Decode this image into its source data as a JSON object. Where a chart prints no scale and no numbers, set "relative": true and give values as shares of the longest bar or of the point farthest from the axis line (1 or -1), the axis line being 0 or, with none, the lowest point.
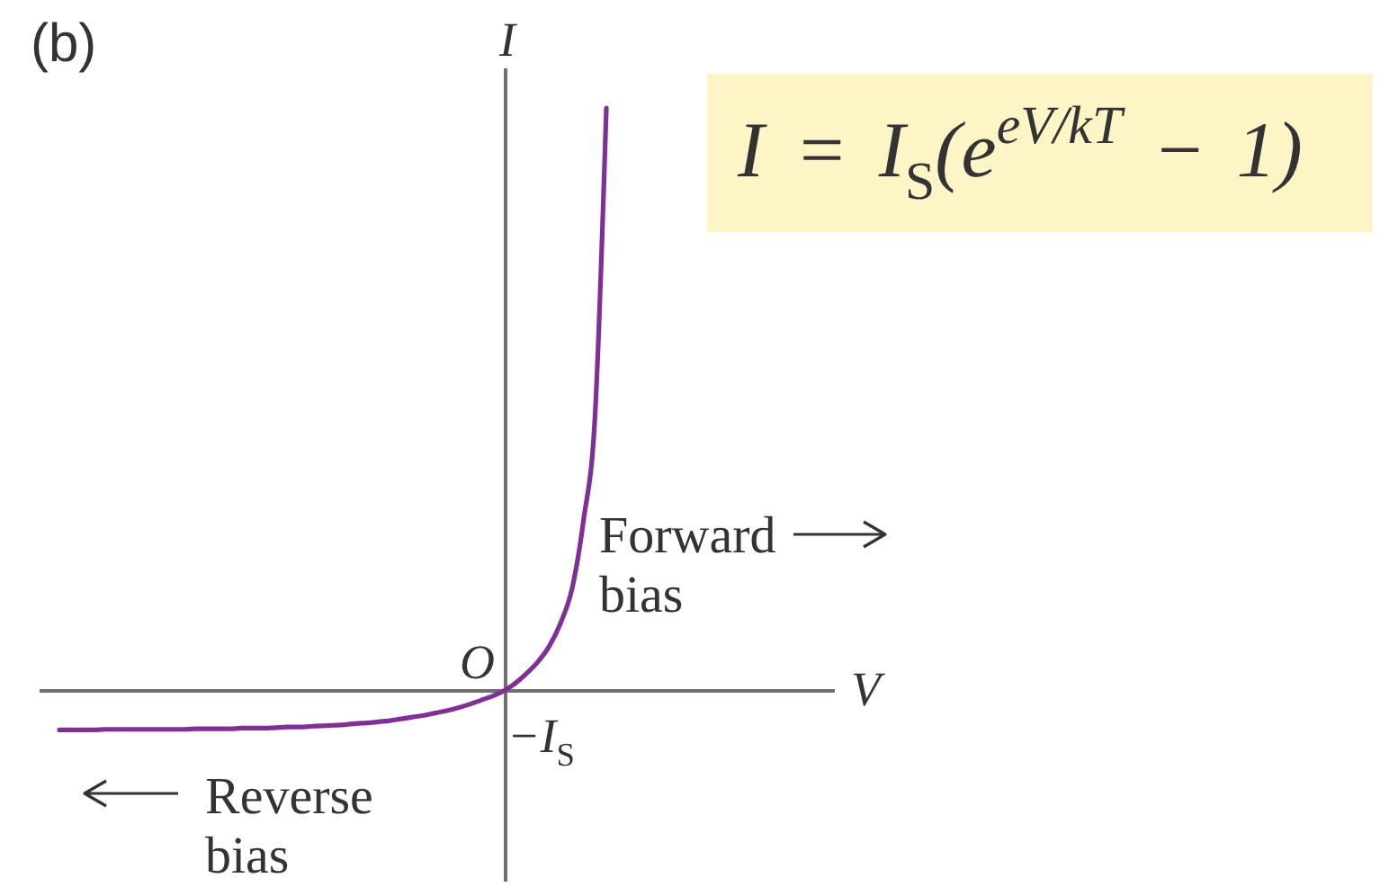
{
  "chart_data": {
    "type": "line",
    "title": "(b)",
    "xlabel": "V",
    "ylabel": "I",
    "relative": true,
    "categories": [
      null,
      null,
      null,
      null,
      null,
      null,
      null,
      null,
      null,
      null,
      null,
      null,
      null,
      null,
      null,
      null,
      null,
      null,
      null,
      null,
      null,
      null,
      null,
      null,
      null,
      null,
      null,
      null,
      null,
      null,
      null,
      null,
      null,
      null,
      null,
      null,
      null,
      null,
      null,
      null,
      null,
      null,
      null,
      null,
      null,
      null,
      null,
      null,
      null
    ],
    "series": [
      {
        "color": "#7f3097",
        "values": [
          -0.067,
          -0.067,
          -0.067,
          -0.067,
          -0.066,
          -0.066,
          -0.066,
          -0.066,
          -0.066,
          -0.066,
          -0.066,
          -0.066,
          -0.065,
          -0.065,
          -0.065,
          -0.065,
          -0.064,
          -0.064,
          -0.064,
          -0.063,
          -0.062,
          -0.062,
          -0.061,
          -0.06,
          -0.059,
          -0.058,
          -0.056,
          -0.055,
          -0.053,
          -0.051,
          -0.048,
          -0.045,
          -0.042,
          -0.038,
          -0.034,
          -0.029,
          -0.023,
          -0.016,
          -0.009,
          0,
          0.013,
          0.03,
          0.05,
          0.077,
          0.117,
          0.176,
          0.293,
          0.469,
          1
        ]
      }
    ],
    "annotations": [
      "O",
      "Forward bias",
      "Reverse bias",
      "I = I$_{S}$(e$^{eV/kT}$ − 1)",
      "−I$_{S}$"
    ]
  }
}
